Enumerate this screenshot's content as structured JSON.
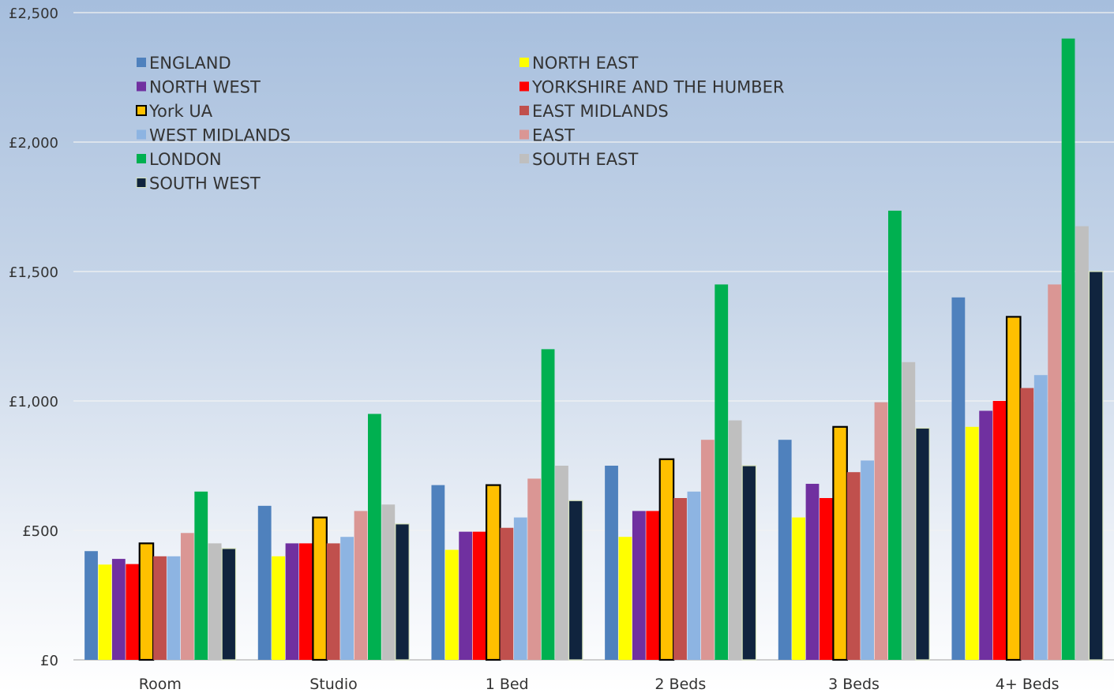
{
  "chart_data": {
    "type": "bar",
    "title": "",
    "xlabel": "",
    "ylabel": "",
    "ylim": [
      0,
      2500
    ],
    "yticks": [
      0,
      500,
      1000,
      1500,
      2000,
      2500
    ],
    "ytick_labels": [
      "£0",
      "£500",
      "£1,000",
      "£1,500",
      "£2,000",
      "£2,500"
    ],
    "grid": true,
    "legend_position": "top-left (inside plot, two columns)",
    "categories": [
      "Room",
      "Studio",
      "1 Bed",
      "2 Beds",
      "3 Beds",
      "4+ Beds"
    ],
    "series": [
      {
        "name": "ENGLAND",
        "color": "#4f81bd",
        "values": [
          420,
          595,
          675,
          750,
          850,
          1400
        ]
      },
      {
        "name": "NORTH EAST",
        "color": "#ffff00",
        "values": [
          368,
          400,
          425,
          475,
          550,
          900
        ]
      },
      {
        "name": "NORTH WEST",
        "color": "#7030a0",
        "values": [
          390,
          450,
          495,
          575,
          680,
          962
        ]
      },
      {
        "name": "YORKSHIRE AND THE HUMBER",
        "color": "#ff0000",
        "values": [
          370,
          450,
          495,
          575,
          625,
          1000
        ]
      },
      {
        "name": "York UA",
        "color": "#ffc000",
        "outline": "#000000",
        "values": [
          450,
          550,
          675,
          775,
          900,
          1325
        ]
      },
      {
        "name": "EAST MIDLANDS",
        "color": "#c0504d",
        "values": [
          400,
          450,
          510,
          625,
          725,
          1050
        ]
      },
      {
        "name": "WEST MIDLANDS",
        "color": "#8db4e2",
        "values": [
          400,
          475,
          550,
          650,
          770,
          1100
        ]
      },
      {
        "name": "EAST",
        "color": "#da9694",
        "values": [
          490,
          575,
          700,
          850,
          995,
          1450
        ]
      },
      {
        "name": "LONDON",
        "color": "#00b050",
        "values": [
          650,
          950,
          1200,
          1450,
          1735,
          2400
        ]
      },
      {
        "name": "SOUTH EAST",
        "color": "#bfbfbf",
        "values": [
          450,
          600,
          750,
          925,
          1150,
          1675
        ]
      },
      {
        "name": "SOUTH WEST",
        "color": "#10243e",
        "outline": "#d8e4bc",
        "values": [
          430,
          525,
          615,
          750,
          895,
          1500
        ]
      }
    ]
  }
}
